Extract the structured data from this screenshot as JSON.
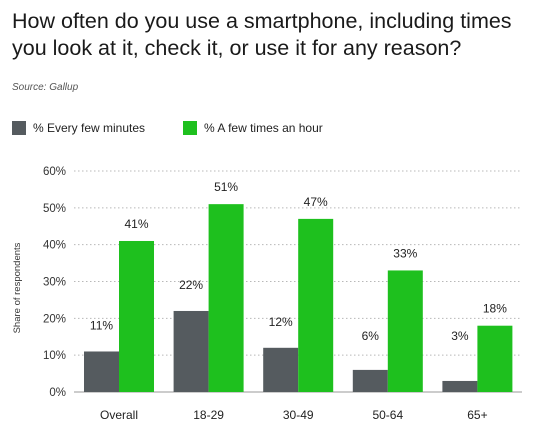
{
  "header": {
    "title": "How often do you use a smartphone, including times you look at it, check it, or use it for any reason?",
    "source": "Source: Gallup"
  },
  "colors": {
    "series1": "#555b5f",
    "series2": "#1ec01e"
  },
  "chart_data": {
    "type": "bar",
    "categories": [
      "Overall",
      "18-29",
      "30-49",
      "50-64",
      "65+"
    ],
    "series": [
      {
        "name": "% Every few minutes",
        "values": [
          11,
          22,
          12,
          6,
          3
        ]
      },
      {
        "name": "% A few times an hour",
        "values": [
          41,
          51,
          47,
          33,
          18
        ]
      }
    ],
    "data_labels": [
      [
        "11%",
        "22%",
        "12%",
        "6%",
        "3%"
      ],
      [
        "41%",
        "51%",
        "47%",
        "33%",
        "18%"
      ]
    ],
    "yticks": [
      "0%",
      "10%",
      "20%",
      "30%",
      "40%",
      "50%",
      "60%"
    ],
    "ylabel": "Share of respondents",
    "ylim": [
      0,
      60
    ],
    "grid": true,
    "legend": "top-left"
  }
}
